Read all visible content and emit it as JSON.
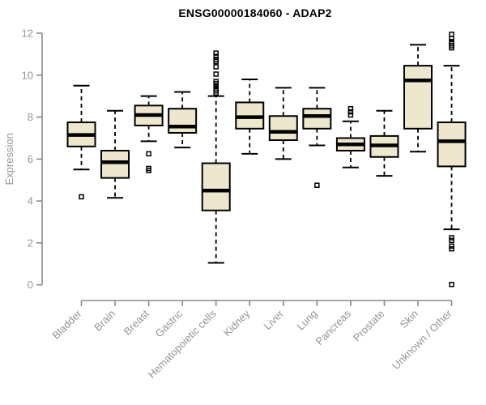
{
  "chart_data": {
    "type": "boxplot",
    "title": "ENSG00000184060 - ADAP2",
    "xlabel": "",
    "ylabel": "Expression",
    "ylim": [
      0,
      12
    ],
    "yticks": [
      0,
      2,
      4,
      6,
      8,
      10,
      12
    ],
    "grid": false,
    "legend": "none",
    "colors": {
      "box_fill": "#ece7cd",
      "box_stroke": "#000000",
      "median": "#000000",
      "whisker": "#000000",
      "axis_line": "#8a8a8a",
      "axis_text": "#949494",
      "title_text": "#000000"
    },
    "categories": [
      "Bladder",
      "Brain",
      "Breast",
      "Gastric",
      "Hematopoietic cells",
      "Kidney",
      "Liver",
      "Lung",
      "Pancreas",
      "Prostate",
      "Skin",
      "Unknown / Other"
    ],
    "series": [
      {
        "category": "Bladder",
        "whisker_low": 5.5,
        "q1": 6.6,
        "median": 7.15,
        "q3": 7.75,
        "whisker_high": 9.5,
        "outliers": [
          4.2
        ]
      },
      {
        "category": "Brain",
        "whisker_low": 4.15,
        "q1": 5.1,
        "median": 5.85,
        "q3": 6.4,
        "whisker_high": 8.3,
        "outliers": []
      },
      {
        "category": "Breast",
        "whisker_low": 6.85,
        "q1": 7.6,
        "median": 8.1,
        "q3": 8.55,
        "whisker_high": 9.0,
        "outliers": [
          6.25,
          5.55,
          5.45
        ]
      },
      {
        "category": "Gastric",
        "whisker_low": 6.55,
        "q1": 7.25,
        "median": 7.55,
        "q3": 8.4,
        "whisker_high": 9.2,
        "outliers": []
      },
      {
        "category": "Hematopoietic cells",
        "whisker_low": 1.05,
        "q1": 3.55,
        "median": 4.5,
        "q3": 5.8,
        "whisker_high": 9.0,
        "outliers": [
          11.05,
          10.9,
          10.75,
          10.65,
          10.4,
          10.05,
          9.7,
          9.6,
          9.5,
          9.45,
          9.35,
          9.25,
          9.15
        ]
      },
      {
        "category": "Kidney",
        "whisker_low": 6.25,
        "q1": 7.45,
        "median": 8.0,
        "q3": 8.7,
        "whisker_high": 9.8,
        "outliers": []
      },
      {
        "category": "Liver",
        "whisker_low": 6.0,
        "q1": 6.9,
        "median": 7.3,
        "q3": 8.05,
        "whisker_high": 9.4,
        "outliers": []
      },
      {
        "category": "Lung",
        "whisker_low": 6.65,
        "q1": 7.45,
        "median": 8.05,
        "q3": 8.4,
        "whisker_high": 9.4,
        "outliers": [
          4.75
        ]
      },
      {
        "category": "Pancreas",
        "whisker_low": 5.6,
        "q1": 6.4,
        "median": 6.7,
        "q3": 7.0,
        "whisker_high": 7.8,
        "outliers": [
          8.4,
          8.25,
          8.1
        ]
      },
      {
        "category": "Prostate",
        "whisker_low": 5.2,
        "q1": 6.1,
        "median": 6.65,
        "q3": 7.1,
        "whisker_high": 8.3,
        "outliers": []
      },
      {
        "category": "Skin",
        "whisker_low": 6.35,
        "q1": 7.45,
        "median": 9.75,
        "q3": 10.45,
        "whisker_high": 11.45,
        "outliers": []
      },
      {
        "category": "Unknown / Other",
        "whisker_low": 2.65,
        "q1": 5.65,
        "median": 6.85,
        "q3": 7.75,
        "whisker_high": 10.45,
        "outliers": [
          11.95,
          11.75,
          11.6,
          11.5,
          11.4,
          11.3,
          2.25,
          2.12,
          1.85,
          1.72,
          0.02
        ]
      }
    ]
  }
}
